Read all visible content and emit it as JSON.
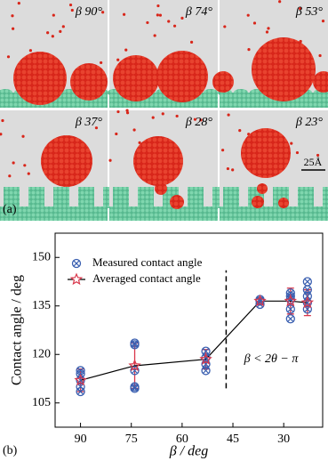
{
  "snapshots": {
    "labels": [
      "β 90°",
      "β 74°",
      "β 53°",
      "β 37°",
      "β 28°",
      "β 23°"
    ],
    "scale_bar": "25Å",
    "panel_label": "(a)"
  },
  "chart_data": {
    "type": "scatter-line",
    "panel_label": "(b)",
    "x_label": "β / deg",
    "y_label": "Contact angle / deg",
    "xlim": [
      97.5,
      18.5
    ],
    "xticks": [
      90,
      75,
      60,
      45,
      30
    ],
    "ylim": [
      97.5,
      157.5
    ],
    "yticks": [
      105,
      120,
      135,
      150
    ],
    "legend": "upper left",
    "series": [
      {
        "name": "Measured contact angle",
        "color": "#3a5fb0",
        "marker": "circled-x",
        "x": [
          90,
          90,
          90,
          90,
          90,
          74,
          74,
          74,
          74,
          74,
          53,
          53,
          53,
          53,
          37,
          37,
          37,
          28,
          28,
          28,
          28,
          28,
          23,
          23,
          23,
          23,
          23
        ],
        "values": [
          108.5,
          110,
          112,
          114,
          115,
          109.5,
          110,
          115,
          123,
          123.5,
          115,
          117,
          119,
          121,
          135.5,
          136.5,
          137,
          131,
          134,
          137,
          138,
          139,
          134,
          136,
          138,
          140,
          142.5
        ]
      },
      {
        "name": "Averaged contact angle",
        "color": "#d9374b",
        "marker": "star",
        "x": [
          90,
          74,
          53,
          37,
          28,
          23
        ],
        "values": [
          112,
          116.5,
          118.5,
          136.5,
          136.5,
          136
        ],
        "yerr": [
          3.5,
          7,
          3,
          1,
          4,
          4
        ]
      }
    ],
    "reference_line": {
      "x": 47,
      "y": [
        109.5,
        146
      ]
    },
    "annotation": "β < 2θ − π"
  }
}
